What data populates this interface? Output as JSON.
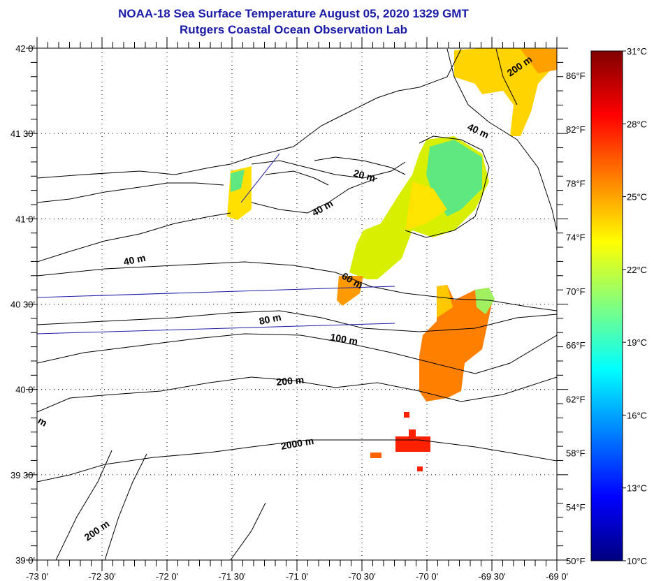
{
  "title": "NOAA-18 Sea Surface Temperature August 05, 2020 1329 GMT",
  "subtitle": "Rutgers Coastal Ocean Observation Lab",
  "map": {
    "lon_range": [
      -73,
      -69
    ],
    "lat_range": [
      39,
      42
    ],
    "lon_labels": [
      "-73 0'",
      "-72 30'",
      "-72 0'",
      "-71 30'",
      "-71 0'",
      "-70 30'",
      "-70 0'",
      "-69 30'",
      "-69 0'"
    ],
    "lat_labels": [
      "39 0'",
      "39 30'",
      "40 0'",
      "40 30'",
      "41 0'",
      "41 30'",
      "42 0'"
    ],
    "contour_labels": [
      "200 m",
      "40 m",
      "20 m",
      "40 m",
      "40 m",
      "60 m",
      "80 m",
      "100 m",
      "200 m",
      "2000 m",
      "200 m",
      "m"
    ]
  },
  "colorbar": {
    "celsius_labels": [
      "31°C",
      "28°C",
      "25°C",
      "22°C",
      "19°C",
      "16°C",
      "13°C",
      "10°C"
    ],
    "fahrenheit_labels": [
      "86°F",
      "82°F",
      "78°F",
      "74°F",
      "70°F",
      "66°F",
      "62°F",
      "58°F",
      "54°F",
      "50°F"
    ],
    "range_c": [
      10,
      31
    ],
    "colors": [
      "#000080",
      "#0000ff",
      "#0080ff",
      "#00ffff",
      "#80ff80",
      "#ffff00",
      "#ff8000",
      "#ff0000",
      "#800000"
    ]
  }
}
